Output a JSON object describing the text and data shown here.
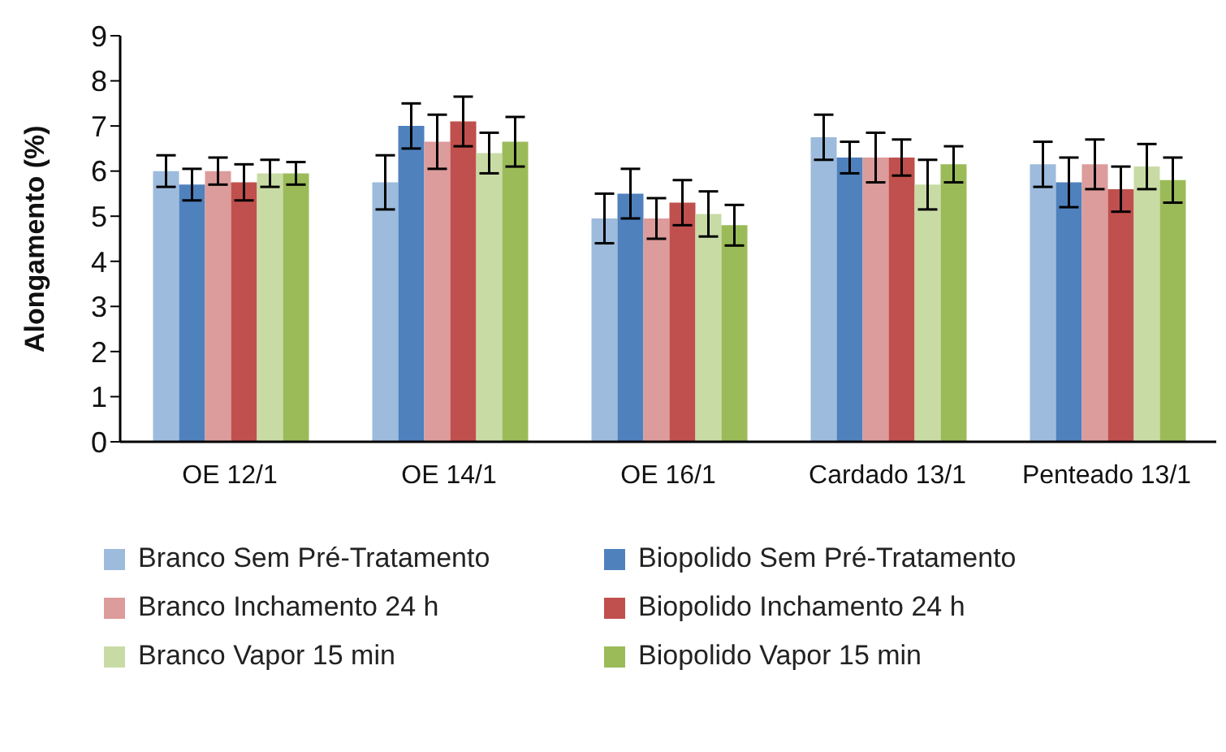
{
  "chart_data": {
    "type": "bar",
    "ylabel": "Alongamento (%)",
    "categories": [
      "OE 12/1",
      "OE 14/1",
      "OE 16/1",
      "Cardado 13/1",
      "Penteado 13/1"
    ],
    "series": [
      {
        "name": "Branco Sem Pré-Tratamento",
        "color": "#9dbbdc",
        "values": [
          6.0,
          5.75,
          4.95,
          6.75,
          6.15
        ],
        "errors": [
          0.35,
          0.6,
          0.55,
          0.5,
          0.5
        ]
      },
      {
        "name": "Biopolido Sem Pré-Tratamento",
        "color": "#4f81bd",
        "values": [
          5.7,
          7.0,
          5.5,
          6.3,
          5.75
        ],
        "errors": [
          0.35,
          0.5,
          0.55,
          0.35,
          0.55
        ]
      },
      {
        "name": "Branco Inchamento 24 h",
        "color": "#dc9c9b",
        "values": [
          6.0,
          6.65,
          4.95,
          6.3,
          6.15
        ],
        "errors": [
          0.3,
          0.6,
          0.45,
          0.55,
          0.55
        ]
      },
      {
        "name": "Biopolido Inchamento 24 h",
        "color": "#c0504d",
        "values": [
          5.75,
          7.1,
          5.3,
          6.3,
          5.6
        ],
        "errors": [
          0.4,
          0.55,
          0.5,
          0.4,
          0.5
        ]
      },
      {
        "name": "Branco Vapor 15 min",
        "color": "#c9dba5",
        "values": [
          5.95,
          6.4,
          5.05,
          5.7,
          6.1
        ],
        "errors": [
          0.3,
          0.45,
          0.5,
          0.55,
          0.5
        ]
      },
      {
        "name": "Biopolido Vapor 15 min",
        "color": "#9bbb59",
        "values": [
          5.95,
          6.65,
          4.8,
          6.15,
          5.8
        ],
        "errors": [
          0.25,
          0.55,
          0.45,
          0.4,
          0.5
        ]
      }
    ],
    "ylim": [
      0,
      9
    ],
    "yticks": [
      0,
      1,
      2,
      3,
      4,
      5,
      6,
      7,
      8,
      9
    ],
    "grid": false,
    "legend": "bottom"
  }
}
